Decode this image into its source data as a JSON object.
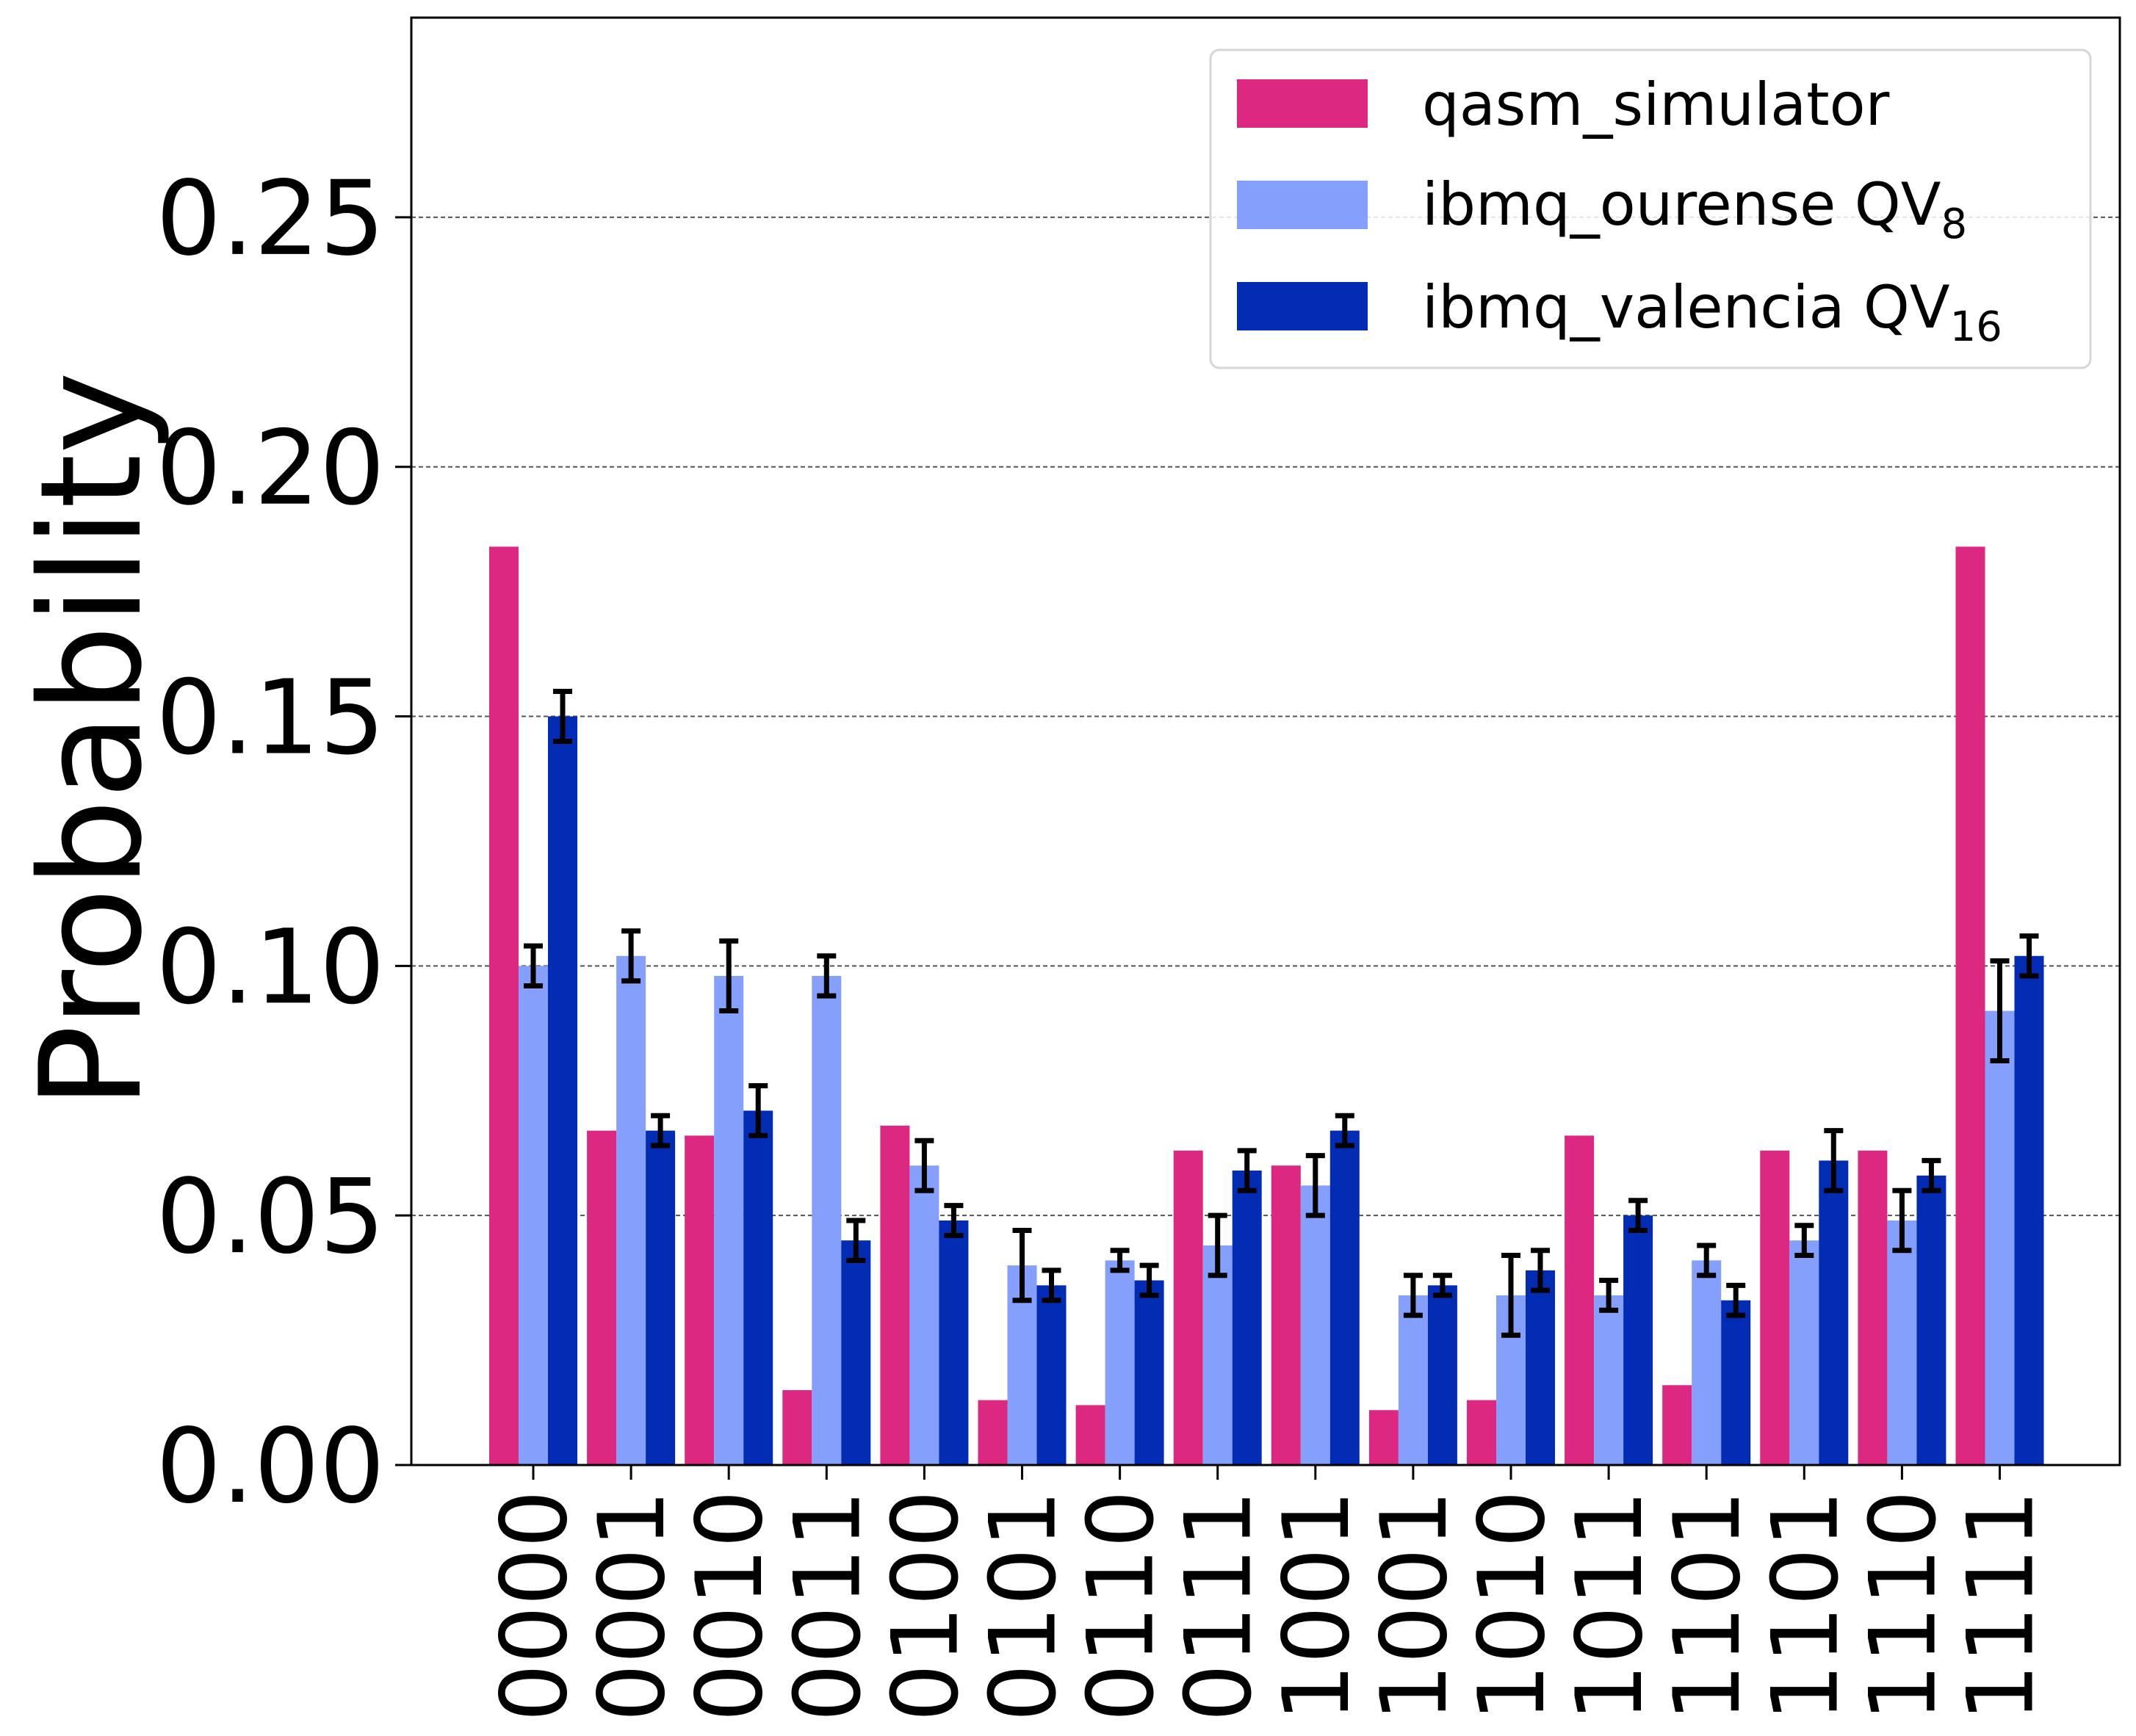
{
  "chart_data": {
    "type": "bar",
    "title": "",
    "xlabel": "",
    "ylabel": "Probability",
    "ylim": [
      0,
      0.29
    ],
    "yticks": [
      "0.00",
      "0.05",
      "0.10",
      "0.15",
      "0.20",
      "0.25"
    ],
    "grid": "horizontal dashed",
    "legend_position": "top-right",
    "categories": [
      "0000",
      "0001",
      "0010",
      "0011",
      "0100",
      "0101",
      "0110",
      "0111",
      "1001",
      "1001",
      "1010",
      "1011",
      "1101",
      "1101",
      "1110",
      "1111"
    ],
    "series": [
      {
        "name": "qasm_simulator",
        "legend_main": "qasm_simulator",
        "legend_sub": "",
        "color": "#dc2880",
        "values": [
          0.184,
          0.067,
          0.066,
          0.015,
          0.068,
          0.013,
          0.012,
          0.063,
          0.06,
          0.011,
          0.013,
          0.066,
          0.016,
          0.063,
          0.063,
          0.184
        ],
        "errors": null
      },
      {
        "name": "ibmq_ourense QV8",
        "legend_main": "ibmq_ourense QV",
        "legend_sub": "8",
        "color": "#859ffc",
        "values": [
          0.1,
          0.102,
          0.098,
          0.098,
          0.06,
          0.04,
          0.041,
          0.044,
          0.056,
          0.034,
          0.034,
          0.034,
          0.041,
          0.045,
          0.049,
          0.091
        ],
        "errors": [
          0.004,
          0.005,
          0.007,
          0.004,
          0.005,
          0.007,
          0.002,
          0.006,
          0.006,
          0.004,
          0.008,
          0.003,
          0.003,
          0.003,
          0.006,
          0.01
        ]
      },
      {
        "name": "ibmq_valencia QV16",
        "legend_main": "ibmq_valencia QV",
        "legend_sub": "16",
        "color": "#022cb4",
        "values": [
          0.15,
          0.067,
          0.071,
          0.045,
          0.049,
          0.036,
          0.037,
          0.059,
          0.067,
          0.036,
          0.039,
          0.05,
          0.033,
          0.061,
          0.058,
          0.102
        ],
        "errors": [
          0.005,
          0.003,
          0.005,
          0.004,
          0.003,
          0.003,
          0.003,
          0.004,
          0.003,
          0.002,
          0.004,
          0.003,
          0.003,
          0.006,
          0.003,
          0.004
        ]
      }
    ]
  }
}
